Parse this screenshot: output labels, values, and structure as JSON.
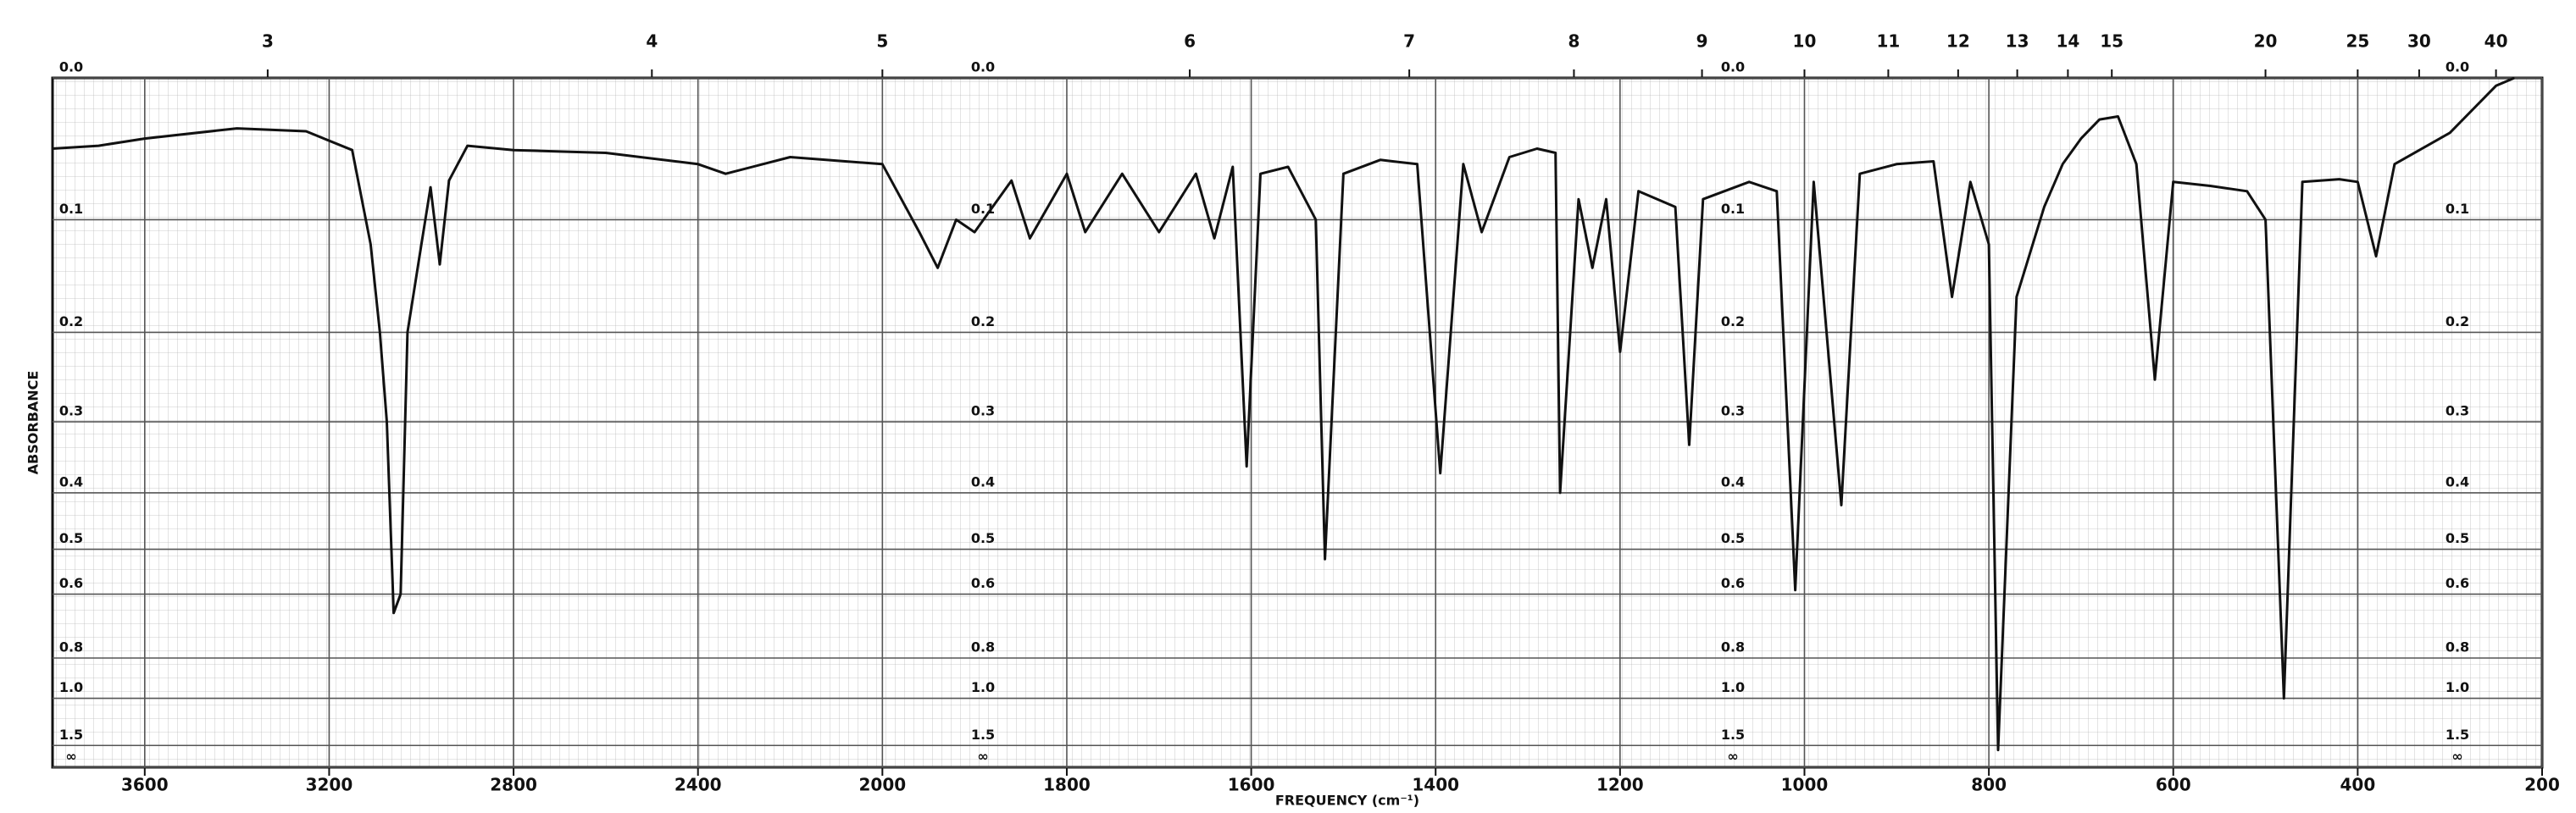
{
  "chart_data": {
    "type": "line",
    "x_label": "FREQUENCY (cm⁻¹)",
    "y_label": "ABSORBANCE",
    "color": "#111111",
    "xlim": [
      3800,
      200
    ],
    "x_break": 2000,
    "xticks": [
      3600,
      3200,
      2800,
      2400,
      2000,
      1800,
      1600,
      1400,
      1200,
      1000,
      800,
      600,
      400,
      200
    ],
    "top_ticks": [
      3,
      4,
      5,
      6,
      7,
      8,
      9,
      10,
      11,
      12,
      13,
      14,
      15,
      20,
      25,
      30,
      40
    ],
    "y_scale": "absorbance",
    "yticks": [
      {
        "value": 0,
        "label": "0.0"
      },
      0.1,
      0.2,
      0.3,
      0.4,
      0.5,
      0.6,
      0.8,
      {
        "value": 1,
        "label": "1.0"
      },
      1.5,
      {
        "value": null,
        "label": "∞"
      }
    ],
    "grid": true,
    "x": [
      3800,
      3700,
      3600,
      3400,
      3250,
      3150,
      3110,
      3090,
      3075,
      3060,
      3045,
      3030,
      3000,
      2980,
      2960,
      2940,
      2900,
      2800,
      2600,
      2400,
      2340,
      2200,
      2000,
      1960,
      1940,
      1920,
      1900,
      1860,
      1840,
      1800,
      1780,
      1740,
      1700,
      1660,
      1640,
      1620,
      1605,
      1590,
      1560,
      1530,
      1520,
      1500,
      1460,
      1420,
      1395,
      1370,
      1350,
      1320,
      1290,
      1270,
      1265,
      1245,
      1230,
      1215,
      1200,
      1180,
      1140,
      1125,
      1110,
      1060,
      1030,
      1010,
      990,
      960,
      940,
      900,
      860,
      840,
      820,
      800,
      790,
      770,
      740,
      720,
      700,
      680,
      660,
      640,
      620,
      600,
      560,
      520,
      500,
      480,
      460,
      420,
      400,
      380,
      360,
      300,
      250,
      230
    ],
    "values": [
      0.047,
      0.045,
      0.04,
      0.033,
      0.035,
      0.048,
      0.12,
      0.2,
      0.3,
      0.65,
      0.6,
      0.2,
      0.12,
      0.075,
      0.137,
      0.07,
      0.045,
      0.048,
      0.05,
      0.058,
      0.065,
      0.053,
      0.058,
      0.11,
      0.14,
      0.1,
      0.11,
      0.07,
      0.115,
      0.065,
      0.11,
      0.065,
      0.11,
      0.065,
      0.115,
      0.06,
      0.36,
      0.065,
      0.06,
      0.1,
      0.52,
      0.065,
      0.055,
      0.058,
      0.37,
      0.058,
      0.11,
      0.053,
      0.047,
      0.05,
      0.4,
      0.084,
      0.14,
      0.084,
      0.22,
      0.078,
      0.09,
      0.33,
      0.084,
      0.071,
      0.078,
      0.59,
      0.071,
      0.42,
      0.065,
      0.058,
      0.056,
      0.166,
      0.071,
      0.12,
      1.6,
      0.166,
      0.09,
      0.058,
      0.04,
      0.027,
      0.025,
      0.058,
      0.25,
      0.071,
      0.074,
      0.078,
      0.1,
      1.0,
      0.071,
      0.069,
      0.071,
      0.13,
      0.058,
      0.036,
      0.005,
      0
    ]
  }
}
